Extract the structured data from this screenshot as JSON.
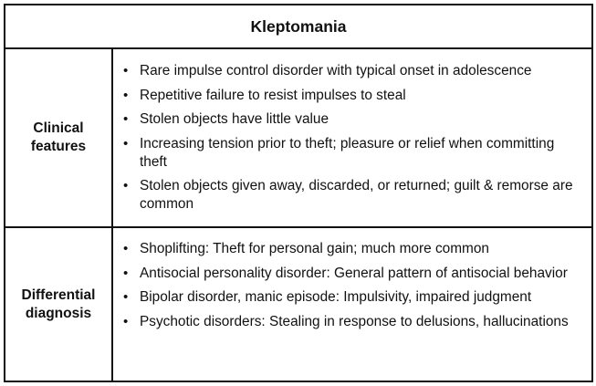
{
  "table": {
    "title": "Kleptomania",
    "rows": [
      {
        "label_line1": "Clinical",
        "label_line2": "features",
        "items": [
          "Rare impulse control disorder with typical onset in adolescence",
          "Repetitive failure to resist impulses to steal",
          "Stolen objects have little value",
          "Increasing tension prior to theft; pleasure or relief when committing theft",
          "Stolen objects given away, discarded, or returned; guilt & remorse are common"
        ]
      },
      {
        "label_line1": "Differential",
        "label_line2": "diagnosis",
        "items": [
          "Shoplifting: Theft for personal gain; much more common",
          "Antisocial personality disorder: General pattern of antisocial behavior",
          "Bipolar disorder, manic episode: Impulsivity, impaired judgment",
          "Psychotic disorders: Stealing in response to delusions, hallucinations"
        ]
      }
    ]
  }
}
